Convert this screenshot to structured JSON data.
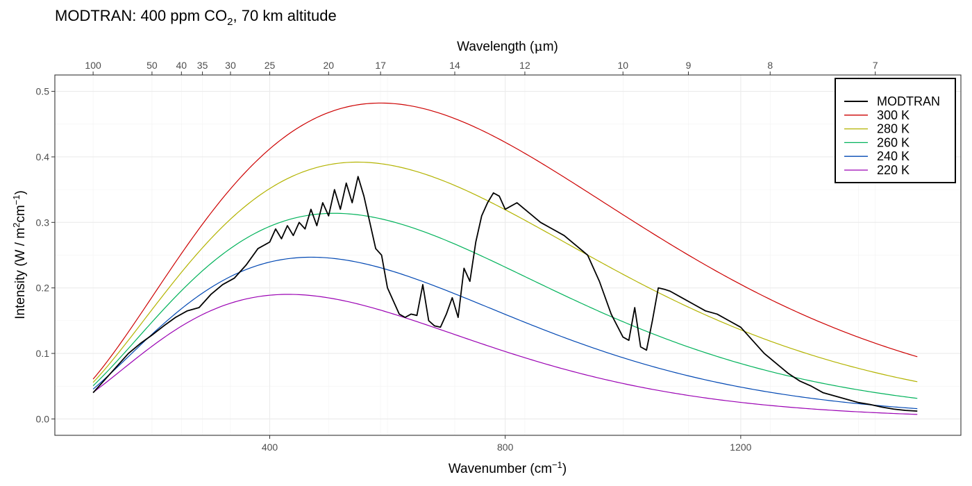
{
  "chart_data": {
    "type": "line",
    "title_prefix": "MODTRAN: 400 ppm CO",
    "title_sub": "2",
    "title_suffix": ", 70 km altitude",
    "xlabel_prefix": "Wavenumber (cm",
    "xlabel_sup": "−1",
    "xlabel_suffix": ")",
    "x2label_prefix": "Wavelength (",
    "x2label_mu": "μ",
    "x2label_suffix": "m)",
    "ylabel_prefix": "Intensity (W / m",
    "ylabel_sup1": "2",
    "ylabel_mid": "cm",
    "ylabel_sup2": "−1",
    "ylabel_suffix": ")",
    "xlim": [
      100,
      1500
    ],
    "ylim": [
      0,
      0.5
    ],
    "x_ticks": [
      400,
      800,
      1200
    ],
    "x_tick_labels": [
      "400",
      "800",
      "1200"
    ],
    "y_ticks": [
      0,
      0.1,
      0.2,
      0.3,
      0.4,
      0.5
    ],
    "y_tick_labels": [
      "0.0",
      "0.1",
      "0.2",
      "0.3",
      "0.4",
      "0.5"
    ],
    "top_ticks": [
      100,
      50,
      40,
      35,
      30,
      25,
      20,
      17,
      14,
      12,
      10,
      9,
      8,
      7
    ],
    "top_tick_labels": [
      "100",
      "50",
      "40",
      "35",
      "30",
      "25",
      "20",
      "17",
      "14",
      "12",
      "10",
      "9",
      "8",
      "7"
    ],
    "grid": true,
    "legend_position": "top-right",
    "blackbody_series": [
      {
        "name": "300 K",
        "temperature": 300,
        "color": "#CD0000"
      },
      {
        "name": "280 K",
        "temperature": 280,
        "color": "#B3B300"
      },
      {
        "name": "260 K",
        "temperature": 260,
        "color": "#00B25A"
      },
      {
        "name": "240 K",
        "temperature": 240,
        "color": "#0047B3"
      },
      {
        "name": "220 K",
        "temperature": 220,
        "color": "#9A00B3"
      }
    ],
    "modtran": {
      "name": "MODTRAN",
      "color": "#000000",
      "x": [
        100,
        120,
        140,
        160,
        180,
        200,
        220,
        240,
        260,
        280,
        300,
        320,
        340,
        360,
        380,
        400,
        410,
        420,
        430,
        440,
        450,
        460,
        470,
        480,
        490,
        500,
        510,
        520,
        530,
        540,
        550,
        560,
        570,
        580,
        590,
        600,
        610,
        620,
        630,
        640,
        650,
        660,
        670,
        680,
        690,
        700,
        710,
        720,
        730,
        740,
        750,
        760,
        770,
        780,
        790,
        800,
        820,
        840,
        860,
        880,
        900,
        920,
        940,
        960,
        980,
        1000,
        1010,
        1020,
        1030,
        1040,
        1050,
        1060,
        1070,
        1080,
        1100,
        1120,
        1140,
        1160,
        1180,
        1200,
        1220,
        1240,
        1260,
        1280,
        1300,
        1320,
        1340,
        1360,
        1380,
        1400,
        1420,
        1440,
        1460,
        1480,
        1500
      ],
      "y": [
        0.04,
        0.06,
        0.08,
        0.1,
        0.115,
        0.128,
        0.142,
        0.155,
        0.165,
        0.17,
        0.19,
        0.205,
        0.215,
        0.235,
        0.26,
        0.27,
        0.29,
        0.275,
        0.295,
        0.28,
        0.3,
        0.29,
        0.32,
        0.295,
        0.33,
        0.31,
        0.35,
        0.32,
        0.36,
        0.33,
        0.37,
        0.34,
        0.3,
        0.26,
        0.25,
        0.2,
        0.18,
        0.16,
        0.155,
        0.16,
        0.158,
        0.205,
        0.15,
        0.142,
        0.14,
        0.16,
        0.185,
        0.155,
        0.23,
        0.21,
        0.27,
        0.31,
        0.33,
        0.345,
        0.34,
        0.32,
        0.33,
        0.315,
        0.3,
        0.29,
        0.28,
        0.265,
        0.25,
        0.21,
        0.16,
        0.125,
        0.12,
        0.17,
        0.11,
        0.105,
        0.15,
        0.2,
        0.198,
        0.195,
        0.185,
        0.175,
        0.165,
        0.16,
        0.15,
        0.14,
        0.12,
        0.1,
        0.085,
        0.07,
        0.058,
        0.05,
        0.04,
        0.035,
        0.03,
        0.025,
        0.022,
        0.018,
        0.015,
        0.013,
        0.012
      ]
    }
  }
}
